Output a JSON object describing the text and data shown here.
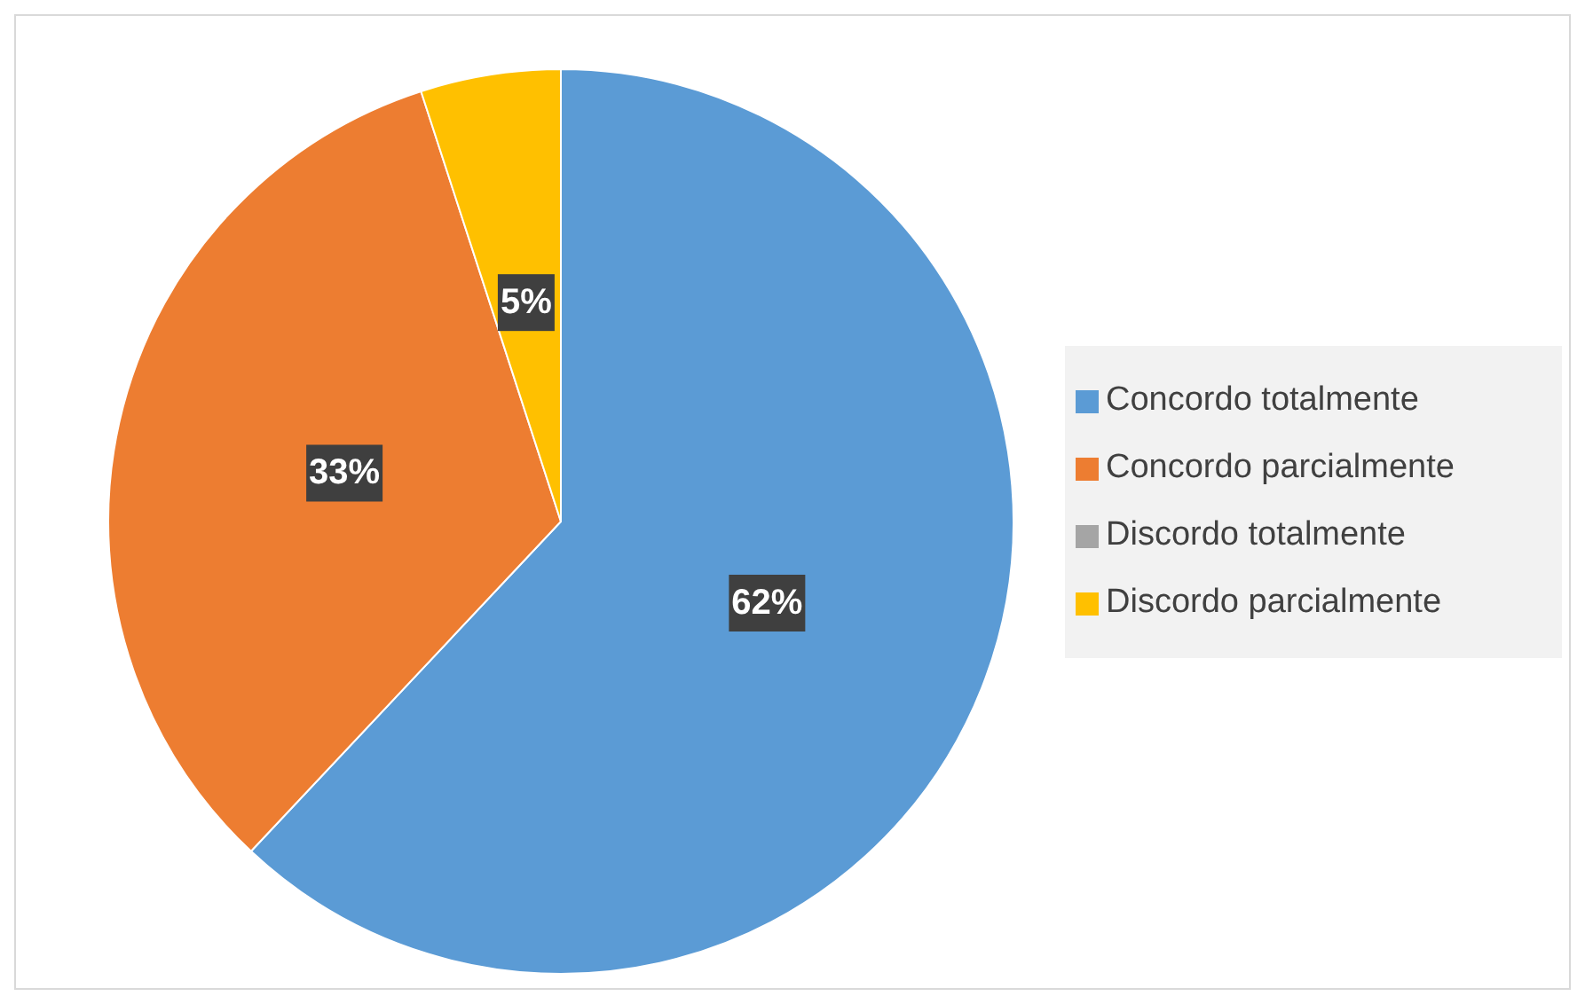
{
  "chart_data": {
    "type": "pie",
    "categories": [
      "Concordo totalmente",
      "Concordo parcialmente",
      "Discordo totalmente",
      "Discordo parcialmente"
    ],
    "values": [
      62,
      33,
      0,
      5
    ],
    "colors": [
      "#5b9bd5",
      "#ed7d31",
      "#a5a5a5",
      "#ffc000"
    ],
    "value_labels": [
      "62%",
      "33%",
      null,
      "5%"
    ],
    "legend": "right"
  }
}
